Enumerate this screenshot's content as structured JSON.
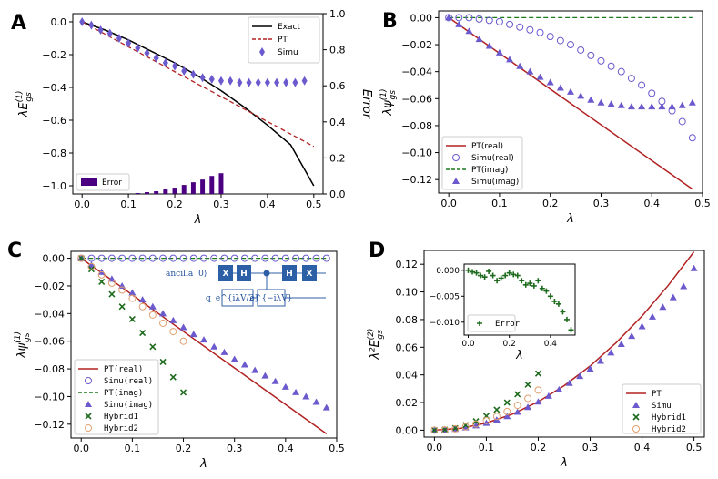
{
  "colors": {
    "exact": "#000000",
    "pt": "#b22222",
    "simu": "#6a5acd",
    "error_bar": "#4b0082",
    "imag_pt": "#1a7a1a",
    "hybrid1": "#1e6b1e",
    "hybrid2": "#e0a070",
    "circuit": "#2d5fa6"
  },
  "chart_data": [
    {
      "panel": "A",
      "type": "line",
      "xlabel": "λ",
      "ylabel_left": "λE_gs^(1)",
      "ylabel_right": "Error",
      "xlim": [
        -0.02,
        0.52
      ],
      "ylim_left": [
        -1.05,
        0.05
      ],
      "ylim_right": [
        0,
        1.0
      ],
      "xticks": [
        "0.0",
        "0.1",
        "0.2",
        "0.3",
        "0.4",
        "0.5"
      ],
      "yticks_left": [
        "0.0",
        "−0.2",
        "−0.4",
        "−0.6",
        "−0.8",
        "−1.0"
      ],
      "yticks_right": [
        "0.0",
        "0.2",
        "0.4",
        "0.6",
        "0.8",
        "1.0"
      ],
      "legend": [
        "Exact",
        "PT",
        "Simu"
      ],
      "legend2": [
        "Error"
      ],
      "exact": {
        "x": [
          0,
          0.05,
          0.1,
          0.15,
          0.2,
          0.25,
          0.3,
          0.35,
          0.4,
          0.45,
          0.5
        ],
        "y": [
          0,
          -0.05,
          -0.11,
          -0.18,
          -0.25,
          -0.33,
          -0.42,
          -0.52,
          -0.63,
          -0.75,
          -1.0
        ]
      },
      "pt": {
        "x": [
          0,
          0.5
        ],
        "y": [
          0,
          -0.76
        ]
      },
      "simu": {
        "x": [
          0,
          0.02,
          0.04,
          0.06,
          0.08,
          0.1,
          0.12,
          0.14,
          0.16,
          0.18,
          0.2,
          0.22,
          0.24,
          0.26,
          0.28,
          0.3,
          0.32,
          0.34,
          0.36,
          0.38,
          0.4,
          0.42,
          0.44,
          0.46,
          0.48
        ],
        "y": [
          0,
          -0.02,
          -0.05,
          -0.07,
          -0.1,
          -0.13,
          -0.16,
          -0.19,
          -0.22,
          -0.25,
          -0.27,
          -0.3,
          -0.32,
          -0.34,
          -0.35,
          -0.36,
          -0.36,
          -0.37,
          -0.37,
          -0.37,
          -0.37,
          -0.37,
          -0.37,
          -0.37,
          -0.36
        ]
      },
      "error": {
        "x": [
          0.0,
          0.02,
          0.04,
          0.06,
          0.08,
          0.1,
          0.12,
          0.14,
          0.16,
          0.18,
          0.2,
          0.22,
          0.24,
          0.26,
          0.28,
          0.3
        ],
        "y": [
          0.0,
          0.0,
          0.0,
          0.0,
          0.0,
          0.0,
          0.005,
          0.01,
          0.015,
          0.025,
          0.035,
          0.05,
          0.065,
          0.08,
          0.1,
          0.115
        ]
      }
    },
    {
      "panel": "B",
      "type": "scatter",
      "xlabel": "λ",
      "ylabel": "λψ_gs^(1)",
      "xlim": [
        -0.02,
        0.5
      ],
      "ylim": [
        -0.13,
        0.005
      ],
      "xticks": [
        "0.0",
        "0.1",
        "0.2",
        "0.3",
        "0.4",
        "0.5"
      ],
      "yticks": [
        "0.00",
        "−0.02",
        "−0.04",
        "−0.06",
        "−0.08",
        "−0.10",
        "−0.12"
      ],
      "legend": [
        "PT(real)",
        "Simu(real)",
        "PT(imag)",
        "Simu(imag)"
      ],
      "pt_real": {
        "x": [
          0,
          0.48
        ],
        "y": [
          0,
          -0.127
        ]
      },
      "simu_real": {
        "x": [
          0,
          0.02,
          0.04,
          0.06,
          0.08,
          0.1,
          0.12,
          0.14,
          0.16,
          0.18,
          0.2,
          0.22,
          0.24,
          0.26,
          0.28,
          0.3,
          0.32,
          0.34,
          0.36,
          0.38,
          0.4,
          0.42,
          0.44,
          0.46,
          0.48
        ],
        "y": [
          0,
          0,
          0,
          -0.001,
          -0.002,
          -0.003,
          -0.005,
          -0.007,
          -0.009,
          -0.011,
          -0.014,
          -0.017,
          -0.02,
          -0.024,
          -0.028,
          -0.032,
          -0.036,
          -0.04,
          -0.045,
          -0.05,
          -0.056,
          -0.062,
          -0.069,
          -0.077,
          -0.089
        ]
      },
      "pt_imag": {
        "x": [
          0,
          0.48
        ],
        "y": [
          0,
          0
        ]
      },
      "simu_imag": {
        "x": [
          0,
          0.02,
          0.04,
          0.06,
          0.08,
          0.1,
          0.12,
          0.14,
          0.16,
          0.18,
          0.2,
          0.22,
          0.24,
          0.26,
          0.28,
          0.3,
          0.32,
          0.34,
          0.36,
          0.38,
          0.4,
          0.42,
          0.44,
          0.46,
          0.48
        ],
        "y": [
          0,
          -0.005,
          -0.01,
          -0.016,
          -0.021,
          -0.026,
          -0.031,
          -0.036,
          -0.04,
          -0.044,
          -0.048,
          -0.052,
          -0.055,
          -0.058,
          -0.061,
          -0.063,
          -0.064,
          -0.065,
          -0.066,
          -0.066,
          -0.066,
          -0.066,
          -0.066,
          -0.065,
          -0.063
        ]
      }
    },
    {
      "panel": "C",
      "type": "scatter",
      "xlabel": "λ",
      "ylabel": "λψ_gs^(1)",
      "xlim": [
        -0.02,
        0.5
      ],
      "ylim": [
        -0.13,
        0.005
      ],
      "xticks": [
        "0.0",
        "0.1",
        "0.2",
        "0.3",
        "0.4",
        "0.5"
      ],
      "yticks": [
        "0.00",
        "−0.02",
        "−0.04",
        "−0.06",
        "−0.08",
        "−0.10",
        "−0.12"
      ],
      "legend": [
        "PT(real)",
        "Simu(real)",
        "PT(imag)",
        "Simu(imag)",
        "Hybrid1",
        "Hybrid2"
      ],
      "pt_real": {
        "x": [
          0,
          0.48
        ],
        "y": [
          0,
          -0.127
        ]
      },
      "simu_real": {
        "x": [
          0,
          0.02,
          0.04,
          0.06,
          0.08,
          0.1,
          0.12,
          0.14,
          0.16,
          0.18,
          0.2,
          0.22,
          0.24,
          0.26,
          0.28,
          0.3,
          0.32,
          0.34,
          0.36,
          0.38,
          0.4,
          0.42,
          0.44,
          0.46,
          0.48
        ],
        "y": [
          0,
          0,
          0,
          0,
          0,
          0,
          0,
          0,
          0,
          0,
          0,
          0,
          0,
          0,
          0,
          0,
          0,
          0,
          0,
          0,
          0,
          0,
          0,
          0,
          0
        ]
      },
      "pt_imag": {
        "x": [
          0,
          0.48
        ],
        "y": [
          0,
          0
        ]
      },
      "simu_imag": {
        "x": [
          0,
          0.02,
          0.04,
          0.06,
          0.08,
          0.1,
          0.12,
          0.14,
          0.16,
          0.18,
          0.2,
          0.22,
          0.24,
          0.26,
          0.28,
          0.3,
          0.32,
          0.34,
          0.36,
          0.38,
          0.4,
          0.42,
          0.44,
          0.46,
          0.48
        ],
        "y": [
          0,
          -0.005,
          -0.01,
          -0.015,
          -0.02,
          -0.025,
          -0.03,
          -0.035,
          -0.04,
          -0.045,
          -0.05,
          -0.055,
          -0.059,
          -0.064,
          -0.068,
          -0.073,
          -0.077,
          -0.081,
          -0.085,
          -0.089,
          -0.093,
          -0.097,
          -0.1,
          -0.104,
          -0.108
        ]
      },
      "hybrid1": {
        "x": [
          0,
          0.02,
          0.04,
          0.06,
          0.08,
          0.1,
          0.12,
          0.14,
          0.16,
          0.18,
          0.2
        ],
        "y": [
          0,
          -0.008,
          -0.017,
          -0.026,
          -0.035,
          -0.044,
          -0.054,
          -0.064,
          -0.075,
          -0.086,
          -0.097
        ]
      },
      "hybrid2": {
        "x": [
          0,
          0.02,
          0.04,
          0.06,
          0.08,
          0.1,
          0.12,
          0.14,
          0.16,
          0.18,
          0.2
        ],
        "y": [
          0,
          -0.006,
          -0.012,
          -0.018,
          -0.023,
          -0.029,
          -0.035,
          -0.041,
          -0.047,
          -0.053,
          -0.06
        ]
      }
    },
    {
      "panel": "D",
      "type": "scatter",
      "xlabel": "λ",
      "ylabel": "λ²E_gs^(2)",
      "xlim": [
        -0.02,
        0.52
      ],
      "ylim": [
        -0.005,
        0.13
      ],
      "xticks": [
        "0.0",
        "0.1",
        "0.2",
        "0.3",
        "0.4",
        "0.5"
      ],
      "yticks": [
        "0.00",
        "0.02",
        "0.04",
        "0.06",
        "0.08",
        "0.10",
        "0.12"
      ],
      "legend": [
        "PT",
        "Simu",
        "Hybrid1",
        "Hybrid2"
      ],
      "pt": {
        "x": [
          0,
          0.05,
          0.1,
          0.15,
          0.2,
          0.25,
          0.3,
          0.35,
          0.4,
          0.45,
          0.5
        ],
        "y": [
          0,
          0.0013,
          0.0052,
          0.0116,
          0.0206,
          0.0322,
          0.0464,
          0.0632,
          0.0826,
          0.1045,
          0.129
        ]
      },
      "simu": {
        "x": [
          0,
          0.02,
          0.04,
          0.06,
          0.08,
          0.1,
          0.12,
          0.14,
          0.16,
          0.18,
          0.2,
          0.22,
          0.24,
          0.26,
          0.28,
          0.3,
          0.32,
          0.34,
          0.36,
          0.38,
          0.4,
          0.42,
          0.44,
          0.46,
          0.48,
          0.5
        ],
        "y": [
          0,
          0.0002,
          0.0008,
          0.0018,
          0.0033,
          0.0051,
          0.0074,
          0.01,
          0.0131,
          0.0166,
          0.0205,
          0.0247,
          0.0293,
          0.034,
          0.039,
          0.0443,
          0.05,
          0.056,
          0.0622,
          0.068,
          0.075,
          0.082,
          0.089,
          0.096,
          0.104,
          0.117
        ]
      },
      "hybrid1": {
        "x": [
          0,
          0.02,
          0.04,
          0.06,
          0.08,
          0.1,
          0.12,
          0.14,
          0.16,
          0.18,
          0.2
        ],
        "y": [
          0,
          0.0003,
          0.0015,
          0.0037,
          0.0065,
          0.0103,
          0.0148,
          0.02,
          0.026,
          0.033,
          0.041
        ]
      },
      "hybrid2": {
        "x": [
          0,
          0.02,
          0.04,
          0.06,
          0.08,
          0.1,
          0.12,
          0.14,
          0.16,
          0.18,
          0.2
        ],
        "y": [
          0,
          0.0002,
          0.001,
          0.0025,
          0.0045,
          0.007,
          0.01,
          0.0135,
          0.018,
          0.023,
          0.029
        ]
      },
      "inset": {
        "xlabel": "λ",
        "xlim": [
          -0.02,
          0.52
        ],
        "ylim": [
          -0.0125,
          0.0012
        ],
        "xticks": [
          "0.0",
          "0.2",
          "0.4"
        ],
        "yticks": [
          "0.000",
          "−0.005",
          "−0.010"
        ],
        "legend": [
          "Error"
        ],
        "error": {
          "x": [
            0,
            0.02,
            0.04,
            0.06,
            0.08,
            0.1,
            0.12,
            0.14,
            0.16,
            0.18,
            0.2,
            0.22,
            0.24,
            0.26,
            0.28,
            0.3,
            0.32,
            0.34,
            0.36,
            0.38,
            0.4,
            0.42,
            0.44,
            0.46,
            0.48,
            0.5
          ],
          "y": [
            0,
            -0.0003,
            -0.0005,
            -0.001,
            -0.0013,
            -0.0002,
            -0.001,
            -0.002,
            -0.0015,
            -0.001,
            -0.0005,
            -0.0008,
            -0.001,
            -0.002,
            -0.0028,
            -0.0025,
            -0.003,
            -0.002,
            -0.0035,
            -0.004,
            -0.005,
            -0.006,
            -0.0065,
            -0.008,
            -0.0095,
            -0.0115
          ]
        }
      }
    }
  ],
  "panel_labels": [
    "A",
    "B",
    "C",
    "D"
  ],
  "circuit": {
    "ancilla_label": "ancilla |0⟩",
    "q_label": "q",
    "gates": [
      "X",
      "H",
      "H",
      "X"
    ],
    "u1": "e^{iλV/2}",
    "u2": "e^{−iλV}"
  }
}
